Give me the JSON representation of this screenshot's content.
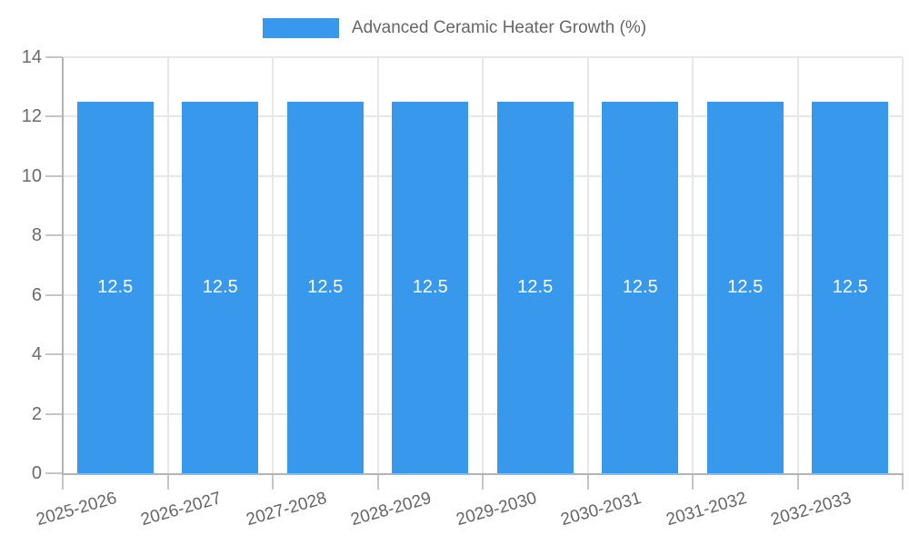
{
  "legend": {
    "label": "Advanced Ceramic Heater Growth (%)"
  },
  "chart_data": {
    "type": "bar",
    "title": "",
    "legend_entries": [
      "Advanced Ceramic Heater Growth (%)"
    ],
    "legend_position": "top",
    "categories": [
      "2025-2026",
      "2026-2027",
      "2027-2028",
      "2028-2029",
      "2029-2030",
      "2030-2031",
      "2031-2032",
      "2032-2033"
    ],
    "values": [
      12.5,
      12.5,
      12.5,
      12.5,
      12.5,
      12.5,
      12.5,
      12.5
    ],
    "value_labels": [
      "12.5",
      "12.5",
      "12.5",
      "12.5",
      "12.5",
      "12.5",
      "12.5",
      "12.5"
    ],
    "xlabel": "",
    "ylabel": "",
    "ylim": [
      0,
      14
    ],
    "yticks": [
      0,
      2,
      4,
      6,
      8,
      10,
      12,
      14
    ],
    "grid": true,
    "colors": {
      "bar": "#3899EC",
      "grid": "#E7E7E7",
      "axis": "#B3B3B3",
      "tick": "#C6C6C6",
      "text": "#666666",
      "value_label": "#FFFFFF"
    }
  }
}
